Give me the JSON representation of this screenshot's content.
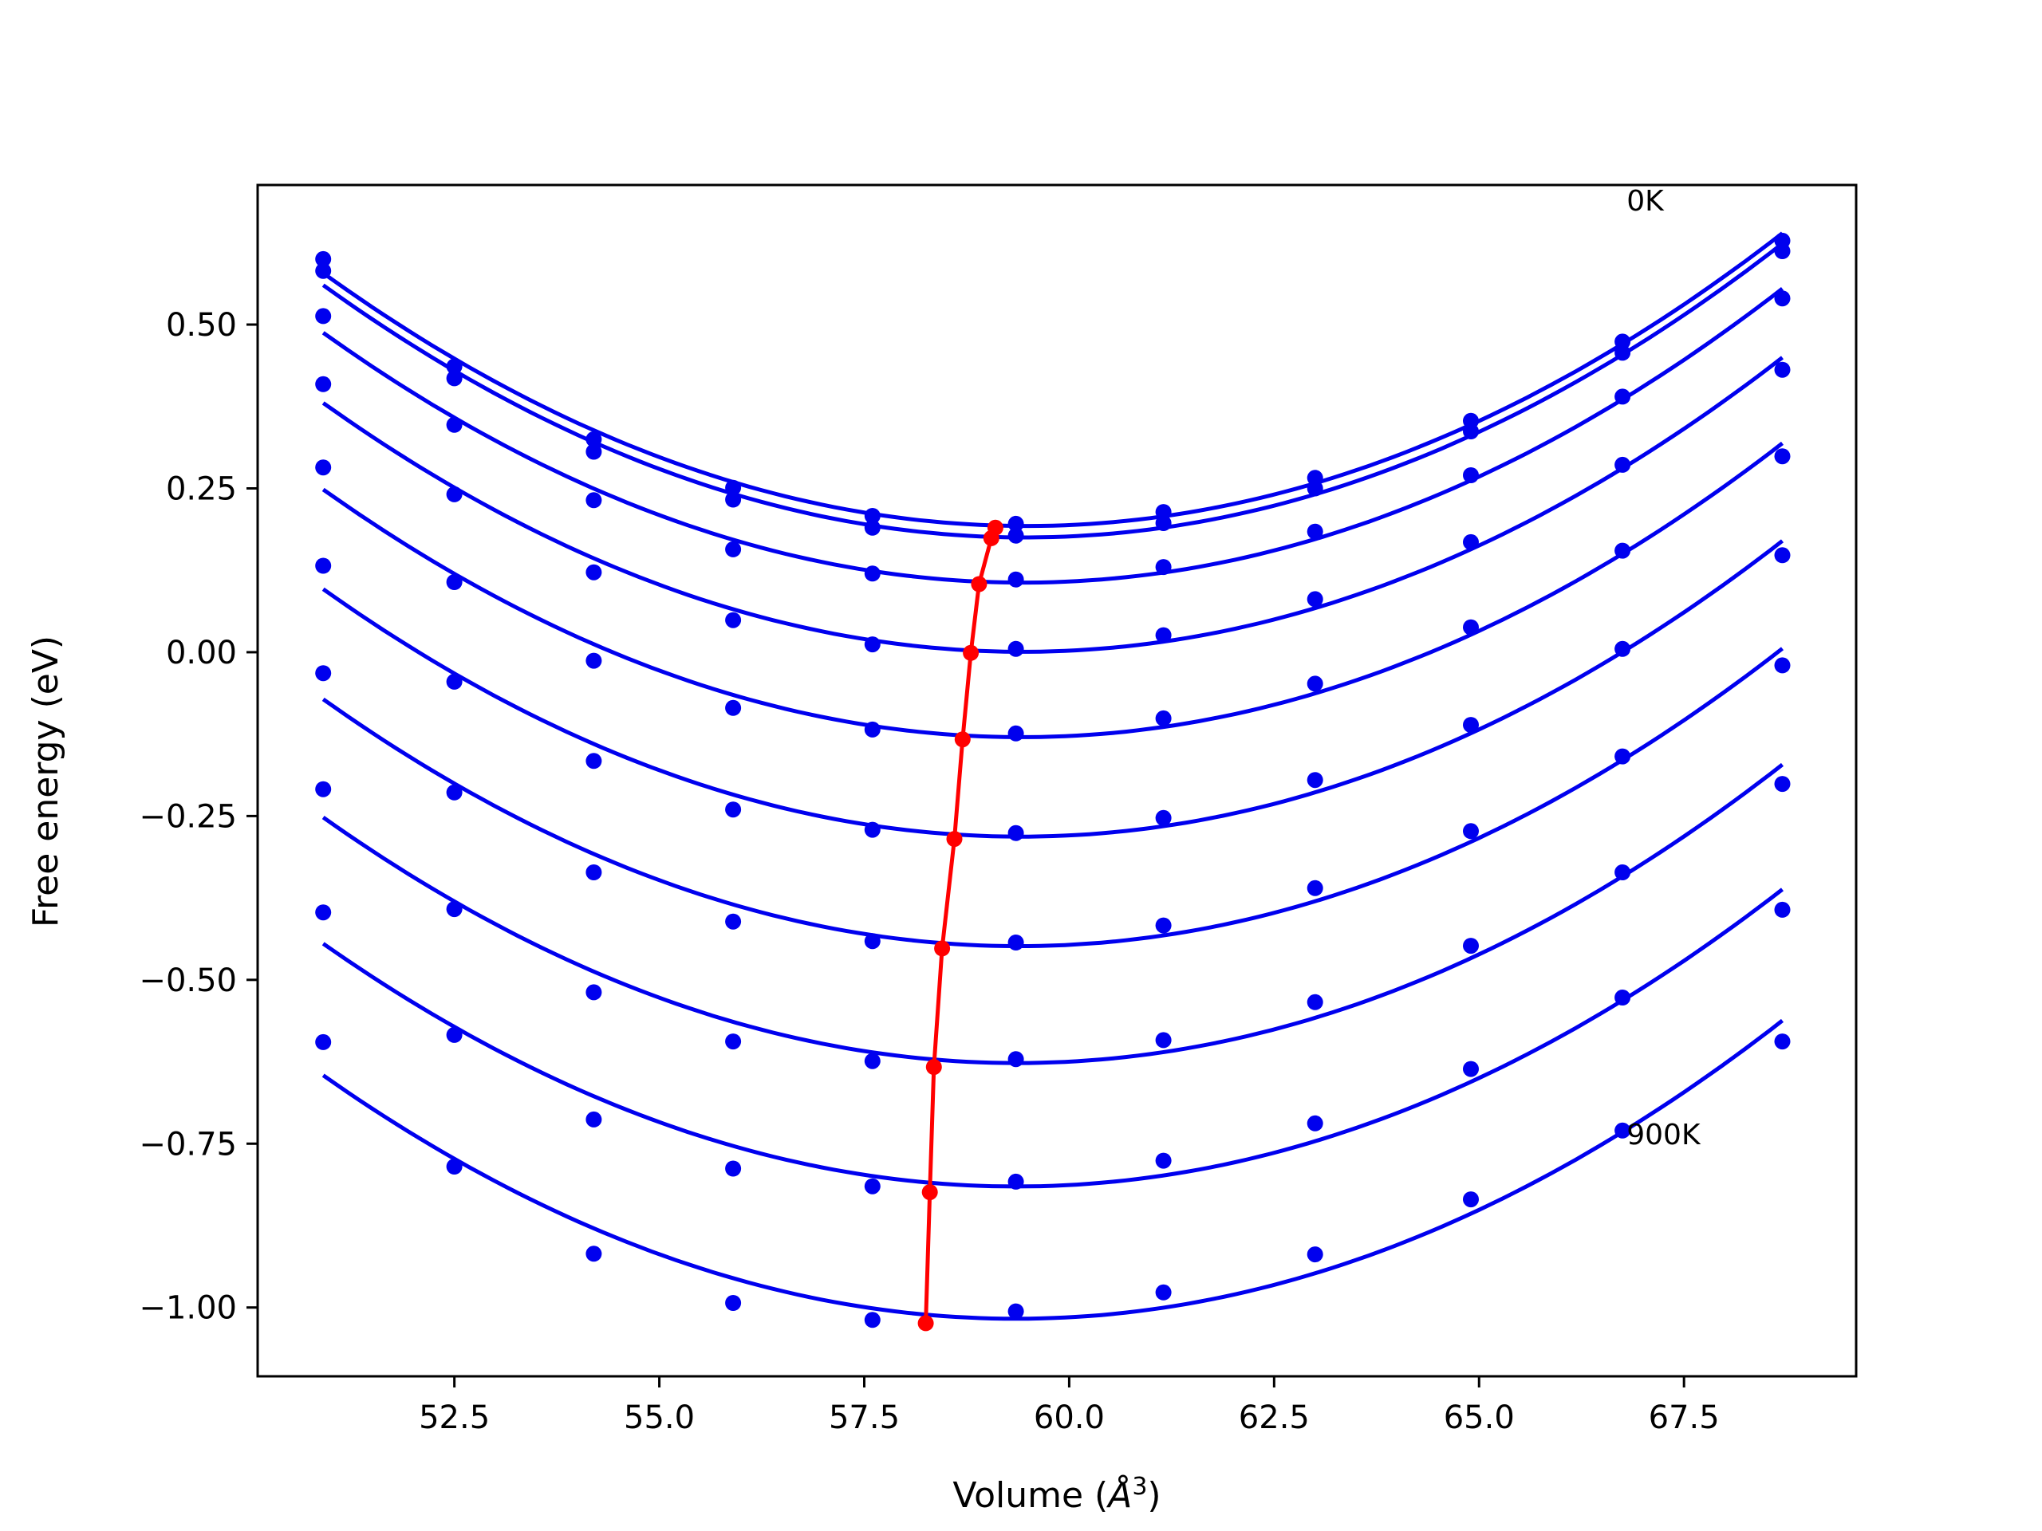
{
  "chart_data": {
    "type": "line",
    "xlabel_prefix": "Volume (",
    "xlabel_unit": "Å",
    "xlabel_exp": "3",
    "xlabel_suffix": ")",
    "ylabel": "Free energy (eV)",
    "xlim": [
      50.1,
      69.6
    ],
    "ylim": [
      -1.105,
      0.713
    ],
    "x_ticks": [
      52.5,
      55.0,
      57.5,
      60.0,
      62.5,
      65.0,
      67.5
    ],
    "x_tick_labels": [
      "52.5",
      "55.0",
      "57.5",
      "60.0",
      "62.5",
      "65.0",
      "67.5"
    ],
    "y_ticks": [
      0.5,
      0.25,
      0.0,
      -0.25,
      -0.5,
      -0.75,
      -1.0
    ],
    "y_tick_labels": [
      "0.50",
      "0.25",
      "0.00",
      "−0.25",
      "−0.50",
      "−0.75",
      "−1.00"
    ],
    "grid": false,
    "annotations": [
      {
        "text": "0K",
        "x": 66.8,
        "y": 0.69
      },
      {
        "text": "900K",
        "x": 66.8,
        "y": -0.735
      }
    ],
    "volumes": [
      50.9,
      52.5,
      54.2,
      55.9,
      57.6,
      59.35,
      61.15,
      63.0,
      64.9,
      66.75,
      68.7
    ],
    "series": [
      {
        "color": "#0000ee",
        "values": [
          0.6,
          0.436,
          0.325,
          0.251,
          0.208,
          0.196,
          0.214,
          0.266,
          0.353,
          0.474,
          0.628
        ]
      },
      {
        "color": "#0000ee",
        "values": [
          0.582,
          0.418,
          0.306,
          0.233,
          0.19,
          0.178,
          0.197,
          0.25,
          0.337,
          0.457,
          0.612
        ]
      },
      {
        "color": "#0000ee",
        "values": [
          0.513,
          0.347,
          0.232,
          0.157,
          0.12,
          0.111,
          0.13,
          0.184,
          0.27,
          0.39,
          0.54
        ]
      },
      {
        "color": "#0000ee",
        "values": [
          0.409,
          0.241,
          0.122,
          0.049,
          0.012,
          0.005,
          0.026,
          0.081,
          0.168,
          0.286,
          0.431
        ]
      },
      {
        "color": "#0000ee",
        "values": [
          0.282,
          0.107,
          -0.013,
          -0.085,
          -0.118,
          -0.124,
          -0.101,
          -0.048,
          0.038,
          0.155,
          0.299
        ]
      },
      {
        "color": "#0000ee",
        "values": [
          0.132,
          -0.045,
          -0.166,
          -0.24,
          -0.271,
          -0.276,
          -0.253,
          -0.195,
          -0.111,
          0.005,
          0.148
        ]
      },
      {
        "color": "#0000ee",
        "values": [
          -0.032,
          -0.214,
          -0.336,
          -0.411,
          -0.441,
          -0.443,
          -0.417,
          -0.36,
          -0.273,
          -0.159,
          -0.02
        ]
      },
      {
        "color": "#0000ee",
        "values": [
          -0.209,
          -0.392,
          -0.519,
          -0.594,
          -0.624,
          -0.621,
          -0.592,
          -0.534,
          -0.448,
          -0.336,
          -0.201
        ]
      },
      {
        "color": "#0000ee",
        "values": [
          -0.397,
          -0.584,
          -0.713,
          -0.788,
          -0.815,
          -0.808,
          -0.776,
          -0.719,
          -0.636,
          -0.527,
          -0.393
        ]
      },
      {
        "color": "#0000ee",
        "values": [
          -0.595,
          -0.785,
          -0.918,
          -0.993,
          -1.019,
          -1.006,
          -0.977,
          -0.919,
          -0.835,
          -0.73,
          -0.594
        ]
      }
    ],
    "equilibrium_series": {
      "color": "#ff0000",
      "x": [
        59.1,
        59.05,
        58.9,
        58.8,
        58.7,
        58.6,
        58.45,
        58.35,
        58.3,
        58.25
      ],
      "y": [
        0.19,
        0.174,
        0.104,
        -0.001,
        -0.133,
        -0.285,
        -0.452,
        -0.633,
        -0.824,
        -1.024
      ]
    }
  }
}
